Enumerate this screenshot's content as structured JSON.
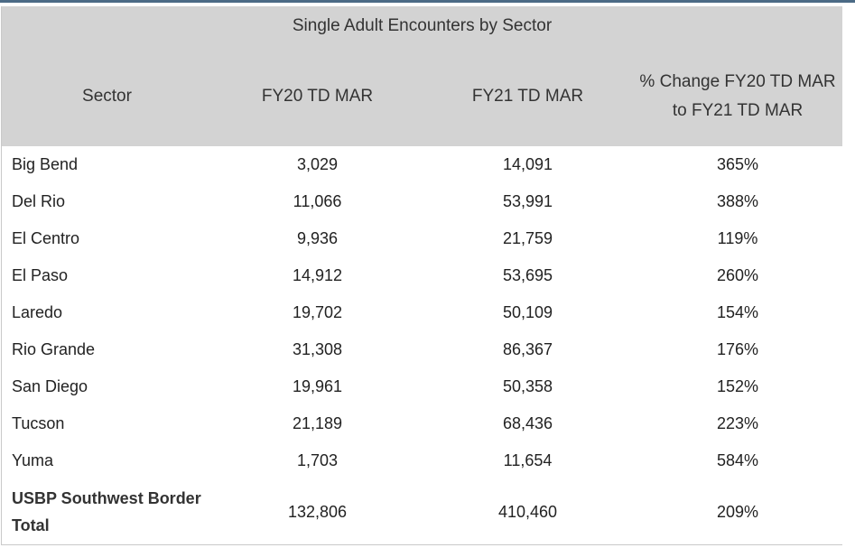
{
  "table": {
    "caption": "Single Adult Encounters by Sector",
    "headers": [
      "Sector",
      "FY20 TD MAR",
      "FY21 TD MAR",
      "% Change FY20 TD MAR to FY21 TD MAR"
    ],
    "rows": [
      [
        "Big Bend",
        "3,029",
        "14,091",
        "365%"
      ],
      [
        "Del Rio",
        "11,066",
        "53,991",
        "388%"
      ],
      [
        "El Centro",
        "9,936",
        "21,759",
        "119%"
      ],
      [
        "El Paso",
        "14,912",
        "53,695",
        "260%"
      ],
      [
        "Laredo",
        "19,702",
        "50,109",
        "154%"
      ],
      [
        "Rio Grande",
        "31,308",
        "86,367",
        "176%"
      ],
      [
        "San Diego",
        "19,961",
        "50,358",
        "152%"
      ],
      [
        "Tucson",
        "21,189",
        "68,436",
        "223%"
      ],
      [
        "Yuma",
        "1,703",
        "11,654",
        "584%"
      ]
    ],
    "total": [
      "USBP Southwest Border Total",
      "132,806",
      "410,460",
      "209%"
    ]
  },
  "colors": {
    "header_bg": "#d3d3d3",
    "top_rule": "#4b6a85",
    "border": "#c9c9c9"
  }
}
